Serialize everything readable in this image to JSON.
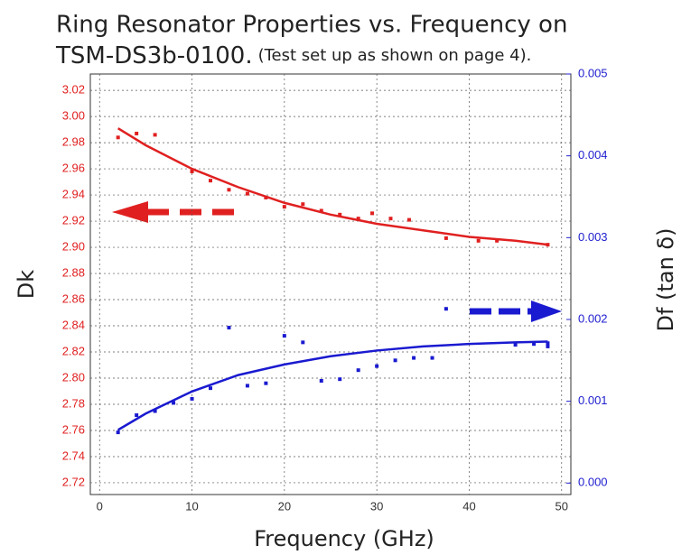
{
  "chart_data": {
    "type": "scatter",
    "title_line1": "Ring Resonator Properties vs. Frequency on",
    "title_line2": "TSM-DS3b-0100.",
    "title_note": "(Test set up as shown on page 4).",
    "xlabel": "Frequency (GHz)",
    "ylabel": "Dk",
    "y2label": "Df (tan δ)",
    "xlim": [
      -1,
      51
    ],
    "ylim": [
      2.711,
      3.0325
    ],
    "y2lim": [
      -0.00014,
      0.005
    ],
    "xticks": [
      0,
      10,
      20,
      30,
      40,
      50
    ],
    "yticks": [
      {
        "value": 2.72,
        "label": "2.72"
      },
      {
        "value": 2.74,
        "label": "2.74"
      },
      {
        "value": 2.76,
        "label": "2.76"
      },
      {
        "value": 2.78,
        "label": "2.78"
      },
      {
        "value": 2.8,
        "label": "2.80"
      },
      {
        "value": 2.82,
        "label": "2.82"
      },
      {
        "value": 2.84,
        "label": "2.84"
      },
      {
        "value": 2.86,
        "label": "2.86"
      },
      {
        "value": 2.88,
        "label": "2.88"
      },
      {
        "value": 2.9,
        "label": "2.90"
      },
      {
        "value": 2.92,
        "label": "2.92"
      },
      {
        "value": 2.94,
        "label": "2.94"
      },
      {
        "value": 2.96,
        "label": "2.96"
      },
      {
        "value": 2.98,
        "label": "2.98"
      },
      {
        "value": 3.0,
        "label": "3.00"
      },
      {
        "value": 3.02,
        "label": "3.02"
      }
    ],
    "y2ticks": [
      {
        "value": 0,
        "label": "0.000"
      },
      {
        "value": 0.001,
        "label": "0.001"
      },
      {
        "value": 0.002,
        "label": "0.002"
      },
      {
        "value": 0.003,
        "label": "0.003"
      },
      {
        "value": 0.004,
        "label": "0.004"
      },
      {
        "value": 0.005,
        "label": "0.005"
      }
    ],
    "ytick_color": "#e02020",
    "y2tick_color": "#2020d0",
    "grid": true,
    "series": [
      {
        "color": "#e02020",
        "style": "points",
        "axis": "y",
        "x": [
          2,
          4,
          6,
          10,
          12,
          14,
          16,
          18,
          20,
          22,
          24,
          26,
          28,
          29.5,
          31.5,
          33.5,
          37.5,
          41,
          43,
          48.5
        ],
        "values": [
          2.984,
          2.987,
          2.986,
          2.958,
          2.951,
          2.944,
          2.941,
          2.938,
          2.931,
          2.933,
          2.928,
          2.925,
          2.922,
          2.926,
          2.922,
          2.921,
          2.907,
          2.905,
          2.905,
          2.902
        ]
      },
      {
        "color": "#e02020",
        "style": "line",
        "axis": "y",
        "x": [
          2,
          5,
          10,
          15,
          20,
          25,
          30,
          35,
          40,
          45,
          48.5
        ],
        "values": [
          2.991,
          2.978,
          2.96,
          2.946,
          2.934,
          2.925,
          2.918,
          2.913,
          2.908,
          2.905,
          2.902
        ]
      },
      {
        "color": "#1a1ad0",
        "style": "points",
        "axis": "y2",
        "x": [
          2,
          4,
          6,
          8,
          10,
          12,
          14,
          16,
          18,
          20,
          22,
          24,
          26,
          28,
          30,
          32,
          34,
          36,
          37.5,
          45,
          47,
          48.5,
          48.5
        ],
        "values": [
          0.00062,
          0.00083,
          0.00088,
          0.00098,
          0.00103,
          0.00116,
          0.0019,
          0.00119,
          0.00122,
          0.0018,
          0.00172,
          0.00125,
          0.00127,
          0.00138,
          0.00143,
          0.0015,
          0.00153,
          0.00153,
          0.00213,
          0.00169,
          0.0017,
          0.00171,
          0.00167
        ]
      },
      {
        "color": "#1a1ad0",
        "style": "line",
        "axis": "y2",
        "x": [
          2,
          5,
          10,
          15,
          20,
          25,
          30,
          35,
          40,
          45,
          48.5
        ],
        "values": [
          0.00065,
          0.00085,
          0.00112,
          0.00132,
          0.00145,
          0.00155,
          0.00162,
          0.00167,
          0.0017,
          0.00172,
          0.00173
        ]
      }
    ]
  }
}
